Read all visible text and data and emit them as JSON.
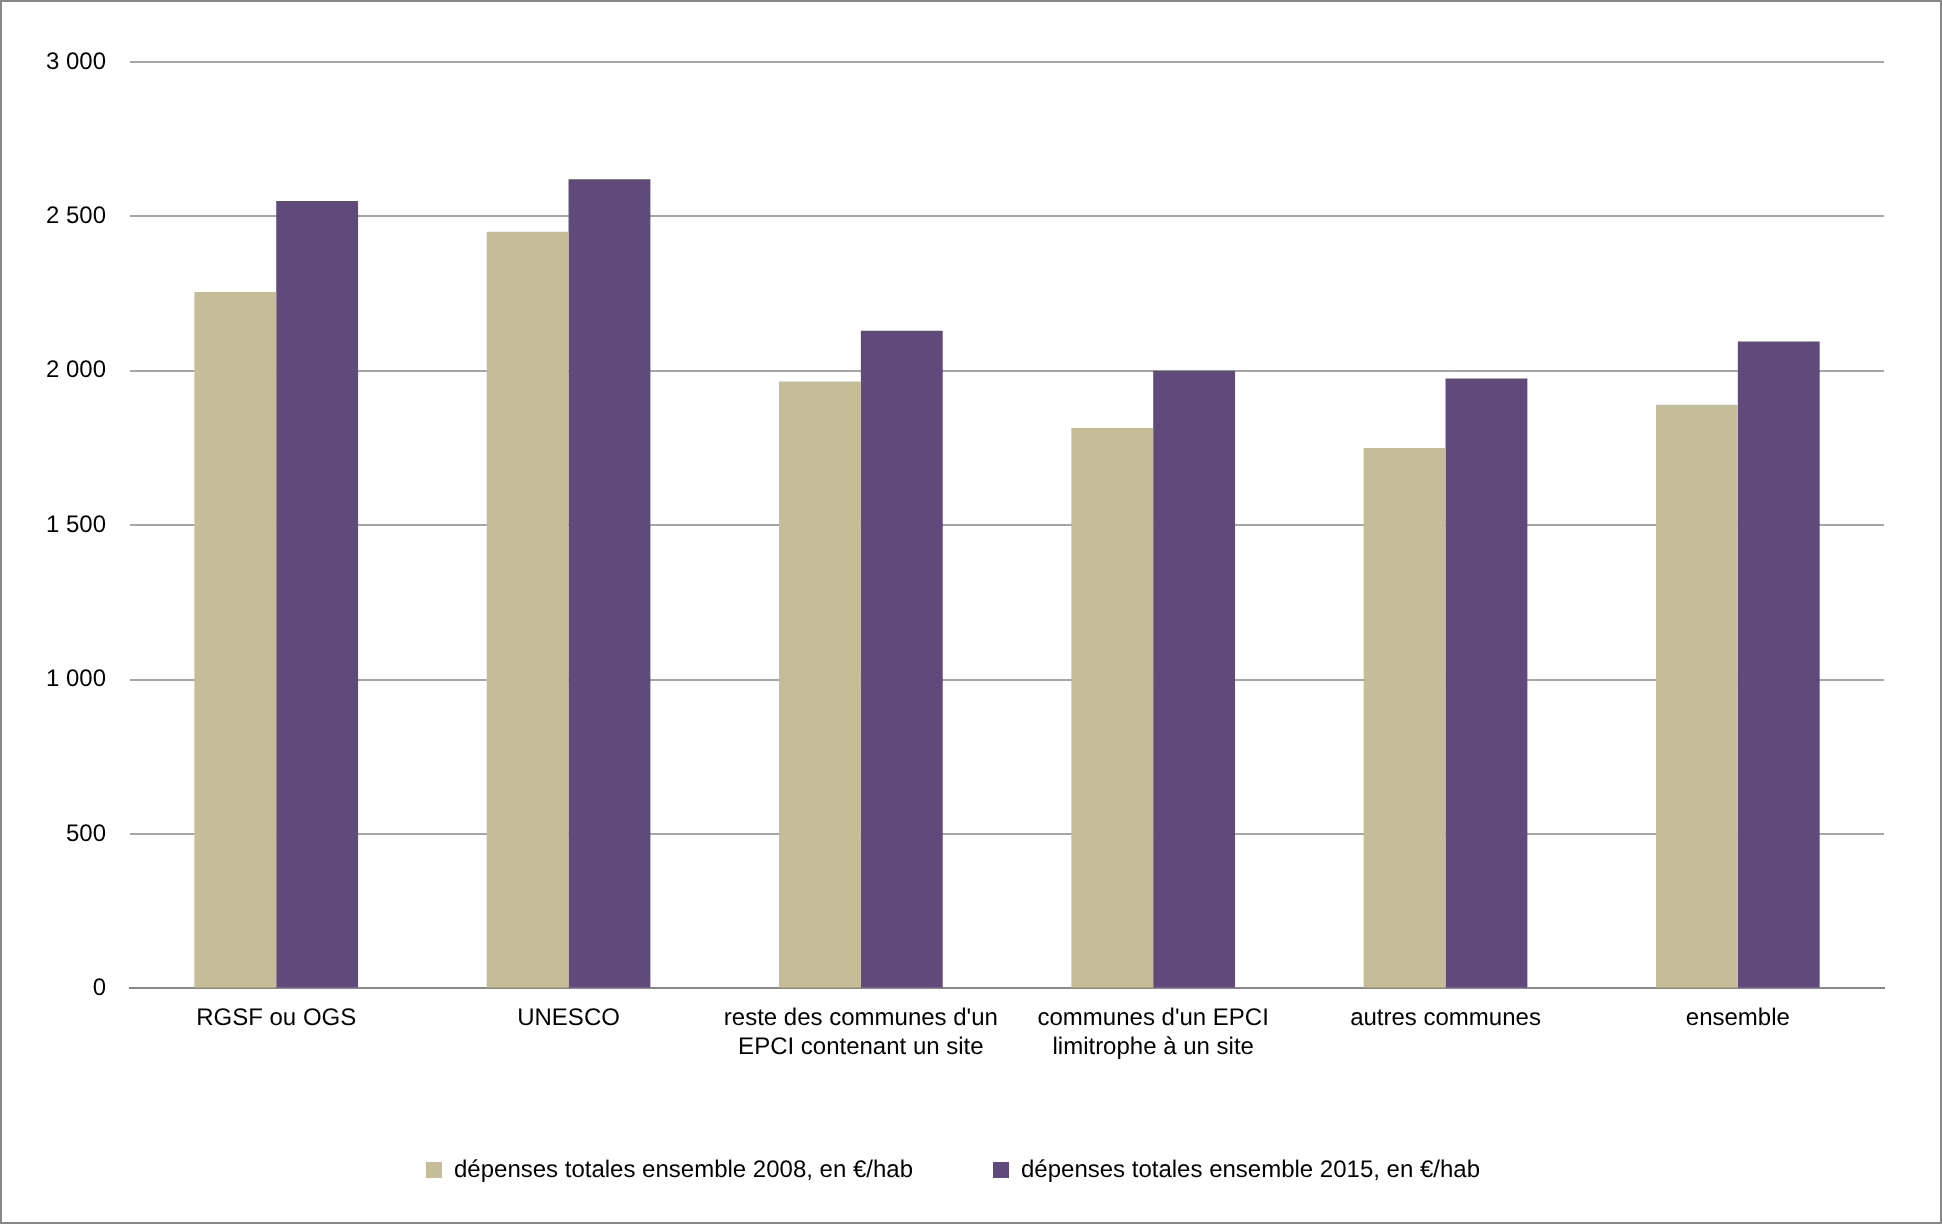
{
  "chart_data": {
    "type": "bar",
    "categories": [
      "RGSF ou OGS",
      "UNESCO",
      "reste des communes d'un EPCI contenant un site",
      "communes d'un EPCI limitrophe à un site",
      "autres communes",
      "ensemble"
    ],
    "series": [
      {
        "name": "dépenses totales ensemble 2008, en €/hab",
        "color": "#c4bd97",
        "values": [
          2255,
          2450,
          1965,
          1815,
          1750,
          1890
        ]
      },
      {
        "name": "dépenses totales ensemble 2015, en €/hab",
        "color": "#604a7b",
        "values": [
          2550,
          2620,
          2130,
          2000,
          1975,
          2095
        ]
      }
    ],
    "ylim": [
      0,
      3000
    ],
    "yticks": [
      0,
      500,
      {
        "value": 1000,
        "label": "1 000"
      },
      {
        "value": 1500,
        "label": "1 500"
      },
      {
        "value": 2000,
        "label": "2 000"
      },
      {
        "value": 2500,
        "label": "2 500"
      },
      {
        "value": 3000,
        "label": "3 000"
      }
    ],
    "grid": "y",
    "legend": "bottom"
  }
}
